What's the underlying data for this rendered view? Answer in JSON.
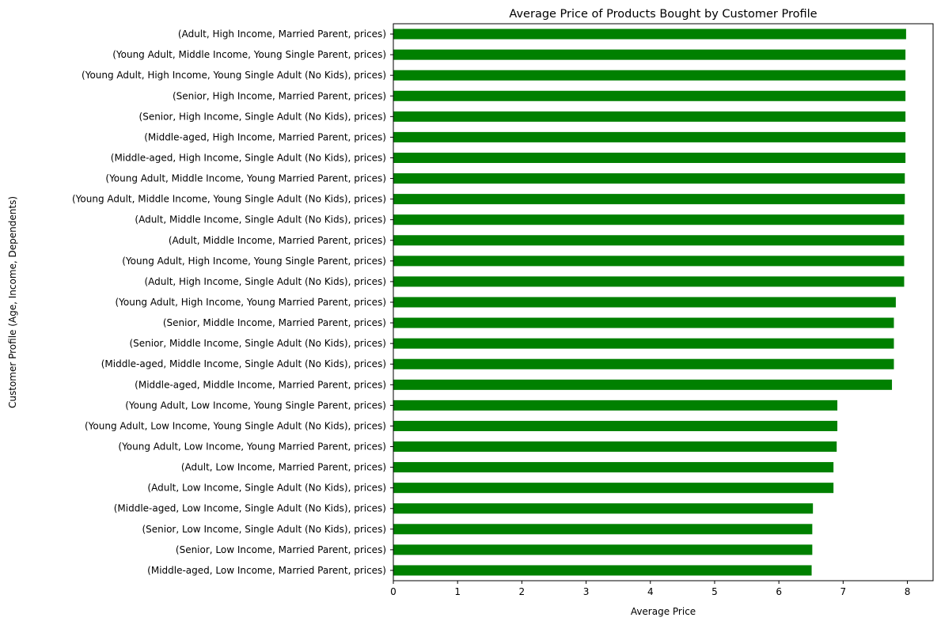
{
  "chart_data": {
    "type": "bar",
    "orientation": "horizontal",
    "title": "Average Price of Products Bought by Customer Profile",
    "xlabel": "Average Price",
    "ylabel": "Customer Profile (Age, Income, Dependents)",
    "xlim": [
      0,
      8.4
    ],
    "xticks": [
      "0",
      "1",
      "2",
      "3",
      "4",
      "5",
      "6",
      "7",
      "8"
    ],
    "grid": false,
    "legend": "none",
    "bar_color": "#008000",
    "categories": [
      "(Adult, High Income, Married Parent, prices)",
      "(Young Adult, Middle Income, Young Single Parent, prices)",
      "(Young Adult, High Income, Young Single Adult (No Kids), prices)",
      "(Senior, High Income, Married Parent, prices)",
      "(Senior, High Income, Single Adult (No Kids), prices)",
      "(Middle-aged, High Income, Married Parent, prices)",
      "(Middle-aged, High Income, Single Adult (No Kids), prices)",
      "(Young Adult, Middle Income, Young Married Parent, prices)",
      "(Young Adult, Middle Income, Young Single Adult (No Kids), prices)",
      "(Adult, Middle Income, Single Adult (No Kids), prices)",
      "(Adult, Middle Income, Married Parent, prices)",
      "(Young Adult, High Income, Young Single Parent, prices)",
      "(Adult, High Income, Single Adult (No Kids), prices)",
      "(Young Adult, High Income, Young Married Parent, prices)",
      "(Senior, Middle Income, Married Parent, prices)",
      "(Senior, Middle Income, Single Adult (No Kids), prices)",
      "(Middle-aged, Middle Income, Single Adult (No Kids), prices)",
      "(Middle-aged, Middle Income, Married Parent, prices)",
      "(Young Adult, Low Income, Young Single Parent, prices)",
      "(Young Adult, Low Income, Young Single Adult (No Kids), prices)",
      "(Young Adult, Low Income, Young Married Parent, prices)",
      "(Adult, Low Income, Married Parent, prices)",
      "(Adult, Low Income, Single Adult (No Kids), prices)",
      "(Middle-aged, Low Income, Single Adult (No Kids), prices)",
      "(Senior, Low Income, Single Adult (No Kids), prices)",
      "(Senior, Low Income, Married Parent, prices)",
      "(Middle-aged, Low Income, Married Parent, prices)"
    ],
    "values": [
      7.98,
      7.97,
      7.97,
      7.97,
      7.97,
      7.97,
      7.97,
      7.96,
      7.96,
      7.95,
      7.95,
      7.95,
      7.95,
      7.82,
      7.79,
      7.79,
      7.79,
      7.76,
      6.91,
      6.91,
      6.9,
      6.85,
      6.85,
      6.53,
      6.52,
      6.52,
      6.51
    ]
  }
}
